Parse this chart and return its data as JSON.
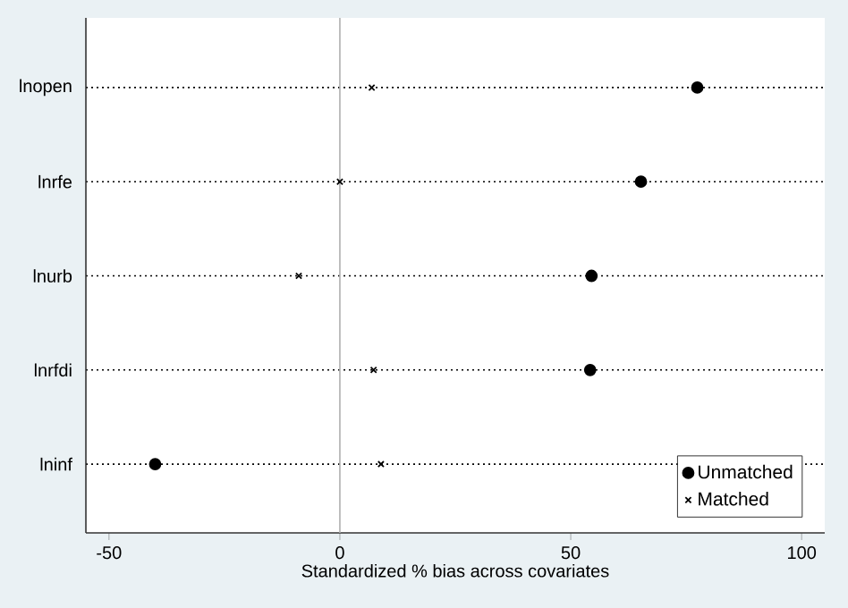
{
  "chart_data": {
    "type": "scatter",
    "orientation": "horizontal",
    "xlabel": "Standardized % bias across covariates",
    "categories": [
      "lnopen",
      "lnrfe",
      "lnurb",
      "lnrfdi",
      "lninf"
    ],
    "series": [
      {
        "name": "Unmatched",
        "color": "#000000",
        "marker": "circle",
        "values": [
          77.4,
          65.2,
          54.5,
          54.2,
          -40.0
        ]
      },
      {
        "name": "Matched",
        "color": "#000000",
        "marker": "cross",
        "values": [
          6.9,
          0.0,
          -8.9,
          7.3,
          8.9
        ]
      }
    ],
    "xlim": [
      -55,
      105
    ],
    "xticks": [
      -50,
      0,
      50,
      100
    ],
    "ref_lines": [
      {
        "axis": "x",
        "value": 0,
        "color": "#b0b0b0",
        "line_style": "solid"
      }
    ],
    "grid": "y",
    "line_style": "dotted",
    "legend": "bottom right"
  }
}
